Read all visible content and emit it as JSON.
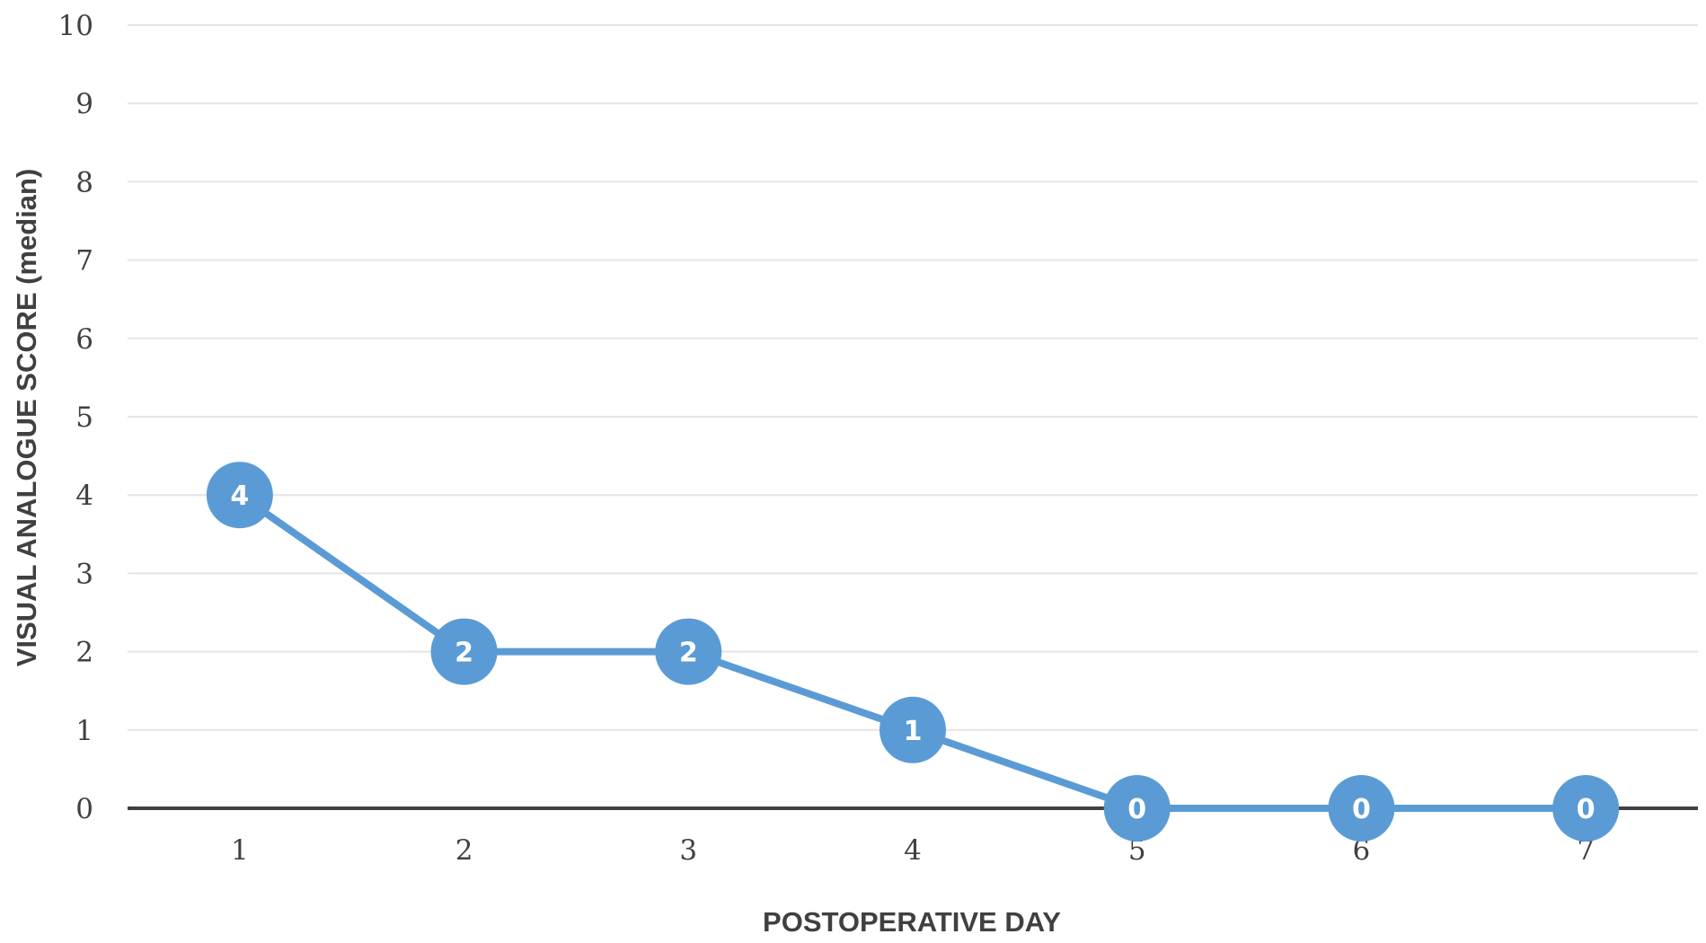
{
  "chart_data": {
    "type": "line",
    "title": "",
    "xlabel": "POSTOPERATIVE DAY",
    "ylabel": "VISUAL ANALOGUE SCORE (median)",
    "x": [
      1,
      2,
      3,
      4,
      5,
      6,
      7
    ],
    "xticks": [
      "1",
      "2",
      "3",
      "4",
      "5",
      "6",
      "7"
    ],
    "yticks": [
      "0",
      "1",
      "2",
      "3",
      "4",
      "5",
      "6",
      "7",
      "8",
      "9",
      "10"
    ],
    "ylim": [
      0,
      10
    ],
    "grid": true,
    "legend": "none",
    "series": [
      {
        "values": [
          4,
          2,
          2,
          1,
          0,
          0,
          0
        ],
        "data_labels": [
          "4",
          "2",
          "2",
          "1",
          "0",
          "0",
          "0"
        ],
        "color": "#5b9bd5"
      }
    ]
  }
}
